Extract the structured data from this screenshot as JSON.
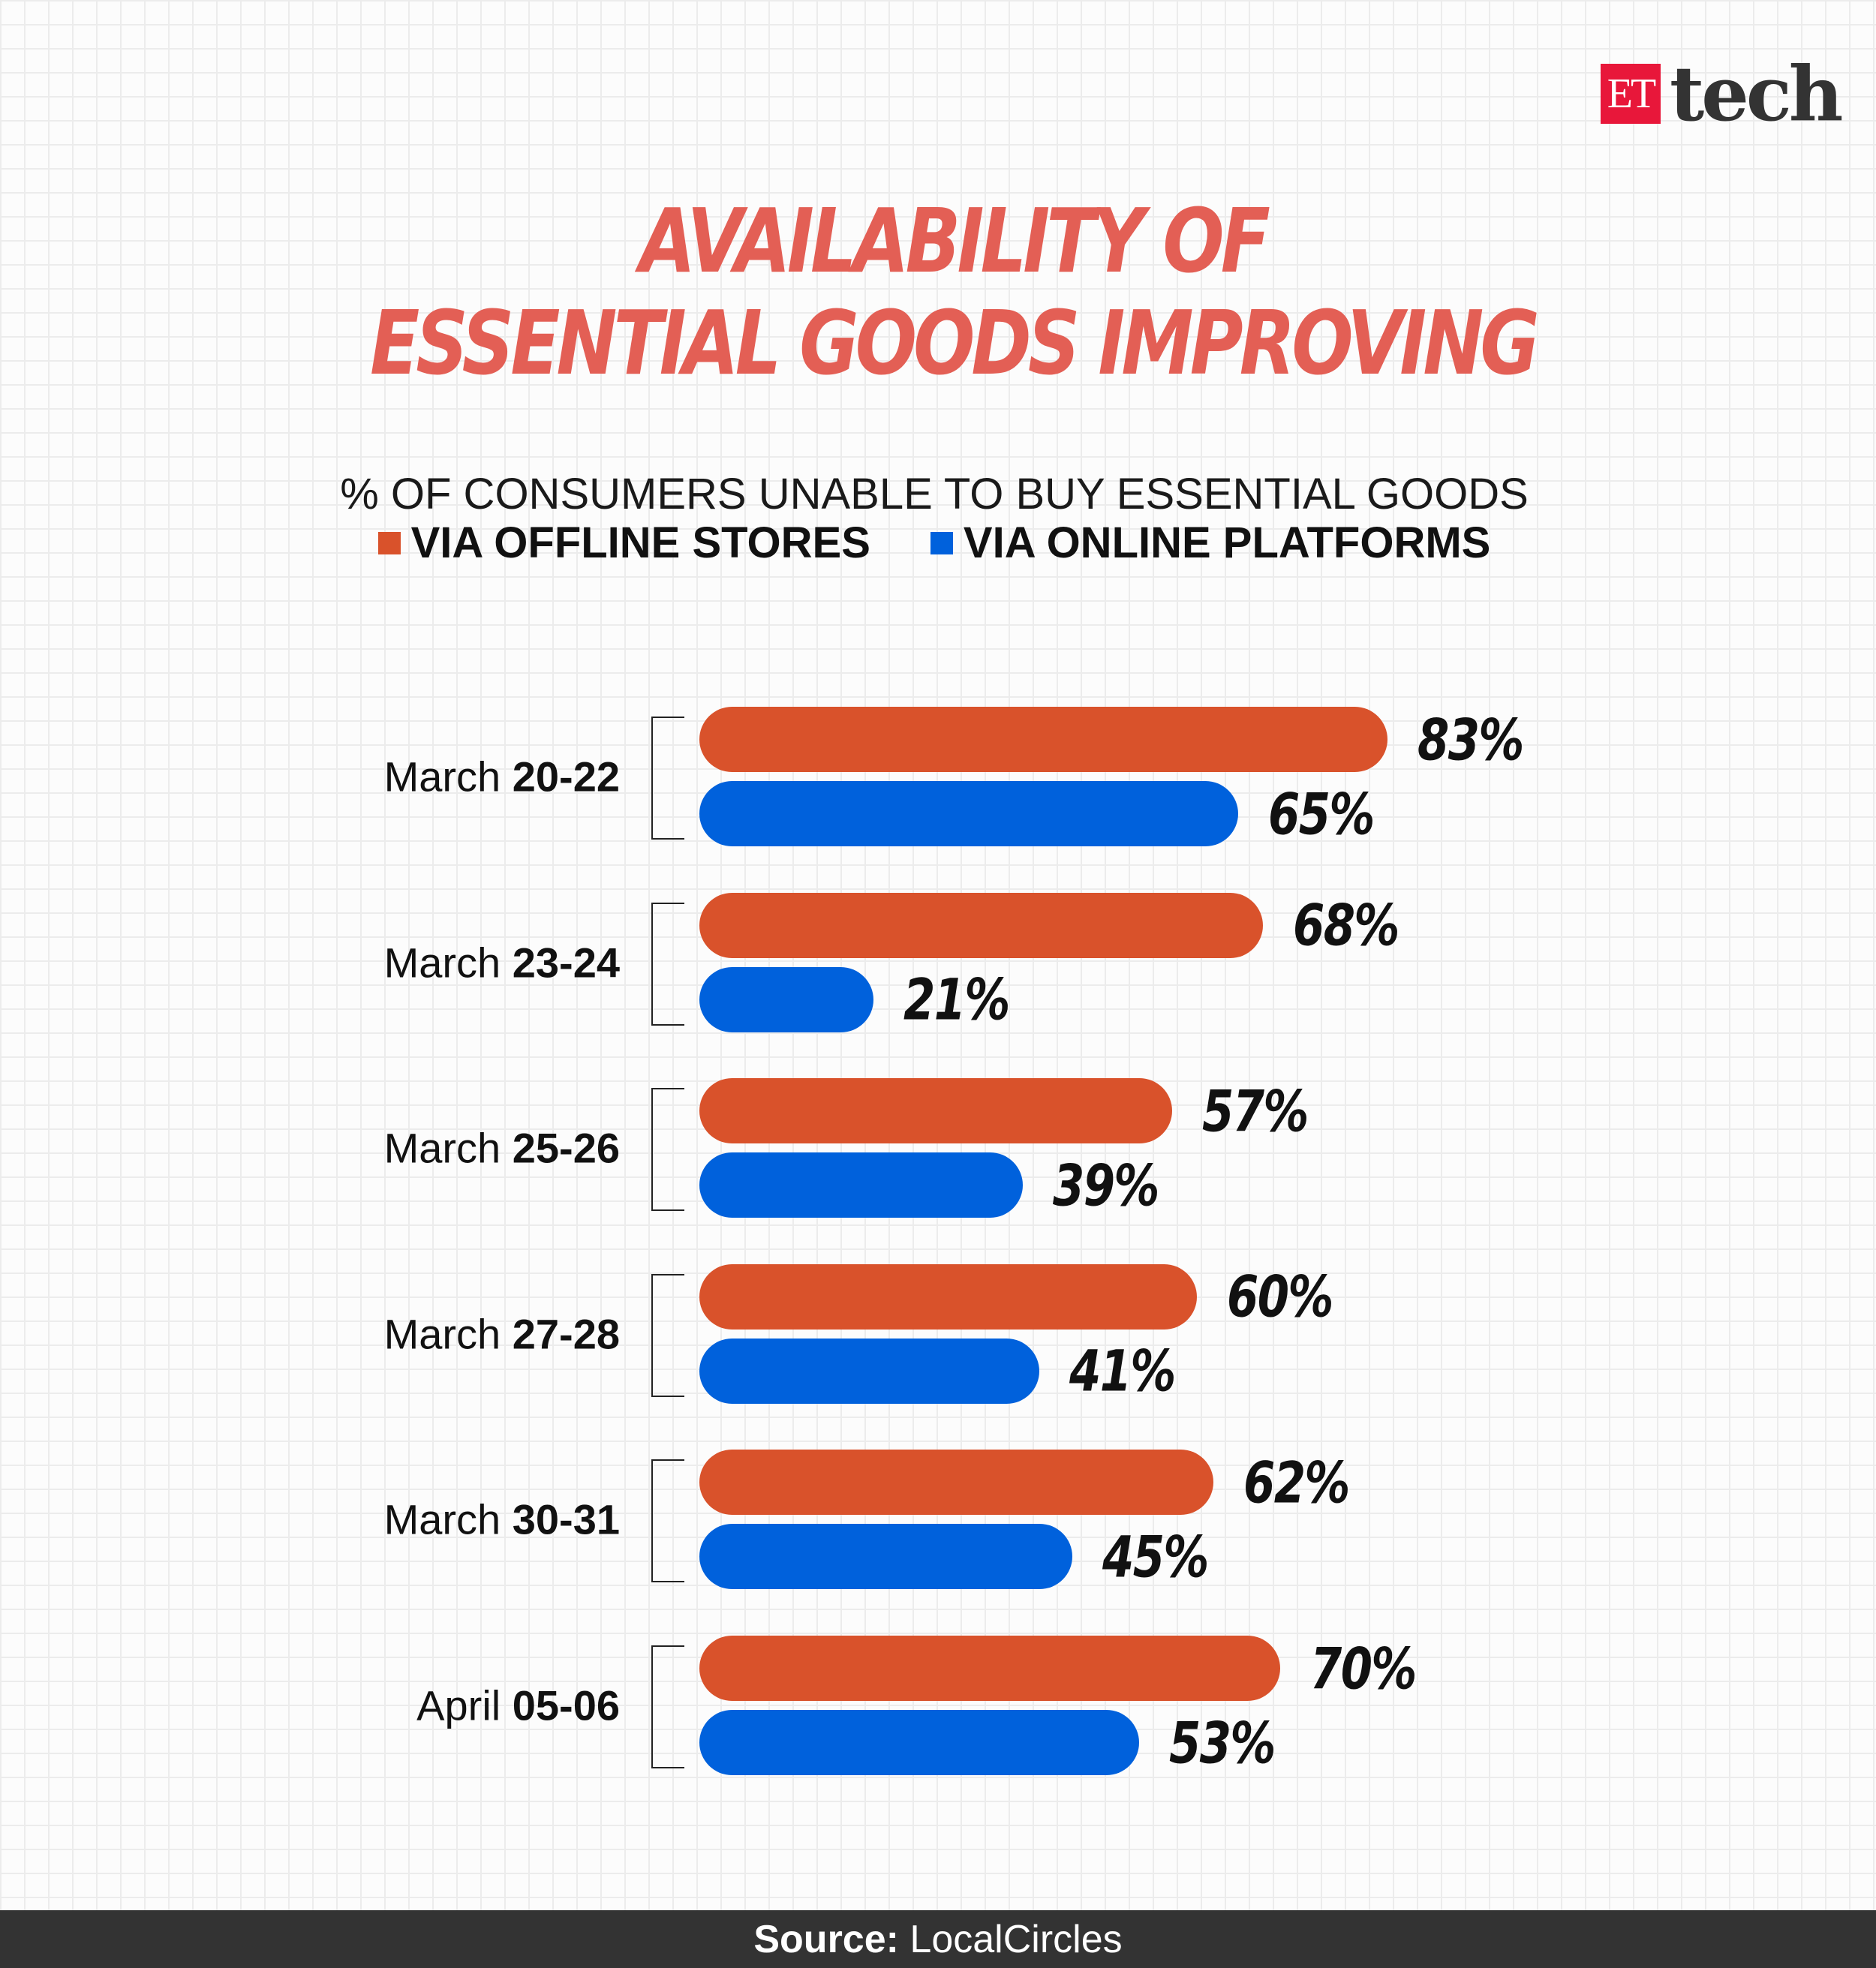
{
  "logo": {
    "et": "ET",
    "tech": "tech"
  },
  "title": {
    "line1": "AVAILABILITY OF",
    "line2": "ESSENTIAL GOODS IMPROVING"
  },
  "chart_data": {
    "type": "bar",
    "orientation": "horizontal",
    "subtitle": "% OF CONSUMERS UNABLE TO BUY ESSENTIAL GOODS",
    "categories": [
      {
        "prefix": "March",
        "range": "20-22"
      },
      {
        "prefix": "March",
        "range": "23-24"
      },
      {
        "prefix": "March",
        "range": "25-26"
      },
      {
        "prefix": "March",
        "range": "27-28"
      },
      {
        "prefix": "March",
        "range": "30-31"
      },
      {
        "prefix": "April",
        "range": "05-06"
      }
    ],
    "series": [
      {
        "name": "VIA OFFLINE STORES",
        "color": "#d9522b",
        "values": [
          83,
          68,
          57,
          60,
          62,
          70
        ]
      },
      {
        "name": "VIA ONLINE PLATFORMS",
        "color": "#0061dc",
        "values": [
          65,
          21,
          39,
          41,
          45,
          53
        ]
      }
    ],
    "value_format": "{v}%",
    "legend_position": "top",
    "grid": false
  },
  "footer": {
    "label": "Source:",
    "source": "LocalCircles"
  }
}
